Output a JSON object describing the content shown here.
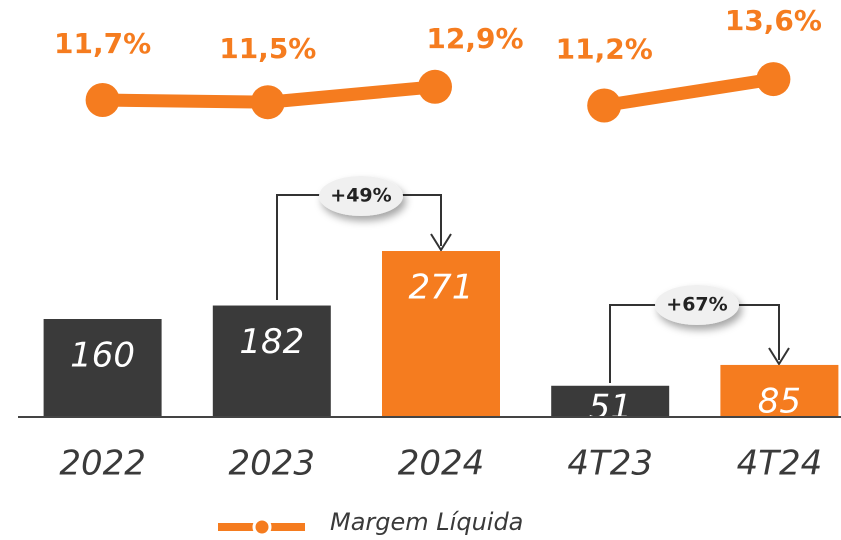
{
  "chart_data": {
    "type": "bar",
    "categories": [
      "2022",
      "2023",
      "2024",
      "4T23",
      "4T24"
    ],
    "series": [
      {
        "values": [
          160,
          182,
          271,
          51,
          85
        ],
        "colors": [
          "#3a3a3a",
          "#3a3a3a",
          "#f57c1f",
          "#3a3a3a",
          "#f57c1f"
        ]
      },
      {
        "name": "Margem Líquida",
        "type": "line",
        "color": "#f57c1f",
        "values": [
          11.7,
          11.5,
          12.9,
          11.2,
          13.6
        ],
        "value_labels": [
          "11,7%",
          "11,5%",
          "12,9%",
          "11,2%",
          "13,6%"
        ]
      }
    ],
    "annotations": [
      "+49%",
      "+67%"
    ]
  }
}
